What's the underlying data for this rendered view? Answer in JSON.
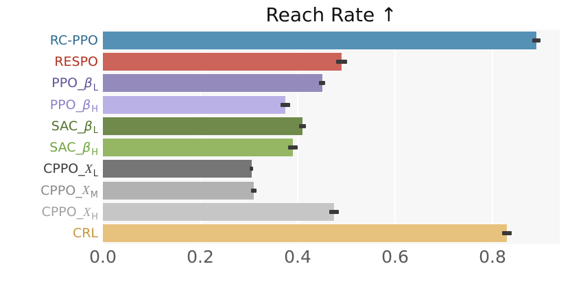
{
  "chart_data": {
    "type": "bar",
    "orientation": "horizontal",
    "title": "Reach Rate ↑",
    "xlabel": "",
    "ylabel": "",
    "xlim": [
      0,
      0.938
    ],
    "xticks": [
      {
        "value": 0.0,
        "label": "0.0"
      },
      {
        "value": 0.2,
        "label": "0.2"
      },
      {
        "value": 0.4,
        "label": "0.4"
      },
      {
        "value": 0.6,
        "label": "0.6"
      },
      {
        "value": 0.8,
        "label": "0.8"
      }
    ],
    "grid": "vertical-white-on-lightgray",
    "categories": [
      {
        "id": "RC-PPO",
        "prefix": "RC-PPO",
        "symbol": "",
        "symbol_style": "",
        "sub": ""
      },
      {
        "id": "RESPO",
        "prefix": "RESPO",
        "symbol": "",
        "symbol_style": "",
        "sub": ""
      },
      {
        "id": "PPO_b_L",
        "prefix": "PPO_",
        "symbol": "β",
        "symbol_style": "italic",
        "sub": "L"
      },
      {
        "id": "PPO_b_H",
        "prefix": "PPO_",
        "symbol": "β",
        "symbol_style": "italic",
        "sub": "H"
      },
      {
        "id": "SAC_b_L",
        "prefix": "SAC_",
        "symbol": "β",
        "symbol_style": "italic",
        "sub": "L"
      },
      {
        "id": "SAC_b_H",
        "prefix": "SAC_",
        "symbol": "β",
        "symbol_style": "italic",
        "sub": "H"
      },
      {
        "id": "CPPO_X_L",
        "prefix": "CPPO_",
        "symbol": "X",
        "symbol_style": "script",
        "sub": "L"
      },
      {
        "id": "CPPO_X_M",
        "prefix": "CPPO_",
        "symbol": "X",
        "symbol_style": "script",
        "sub": "M"
      },
      {
        "id": "CPPO_X_H",
        "prefix": "CPPO_",
        "symbol": "X",
        "symbol_style": "script",
        "sub": "H"
      },
      {
        "id": "CRL",
        "prefix": "CRL",
        "symbol": "",
        "symbol_style": "",
        "sub": ""
      }
    ],
    "values": [
      0.89,
      0.49,
      0.45,
      0.375,
      0.41,
      0.39,
      0.305,
      0.31,
      0.475,
      0.83
    ],
    "errors": [
      0.008,
      0.011,
      0.007,
      0.01,
      0.007,
      0.01,
      0.003,
      0.006,
      0.01,
      0.01
    ],
    "bar_colors": [
      "#5590b5",
      "#cd6459",
      "#948bbc",
      "#bab2e6",
      "#6f8a4b",
      "#95b763",
      "#767676",
      "#b2b2b2",
      "#c6c6c6",
      "#e7c27d"
    ],
    "label_colors": [
      "#2d6a8f",
      "#b0301f",
      "#5d5397",
      "#8d82c9",
      "#53702c",
      "#71a33f",
      "#3a3a3a",
      "#8a8a8a",
      "#a2a2a2",
      "#c8963c"
    ],
    "error_color": "#3a3a3a",
    "plot_bg_color": "#f7f7f7",
    "tick_label_color": "#595959",
    "title_color": "#111111"
  }
}
